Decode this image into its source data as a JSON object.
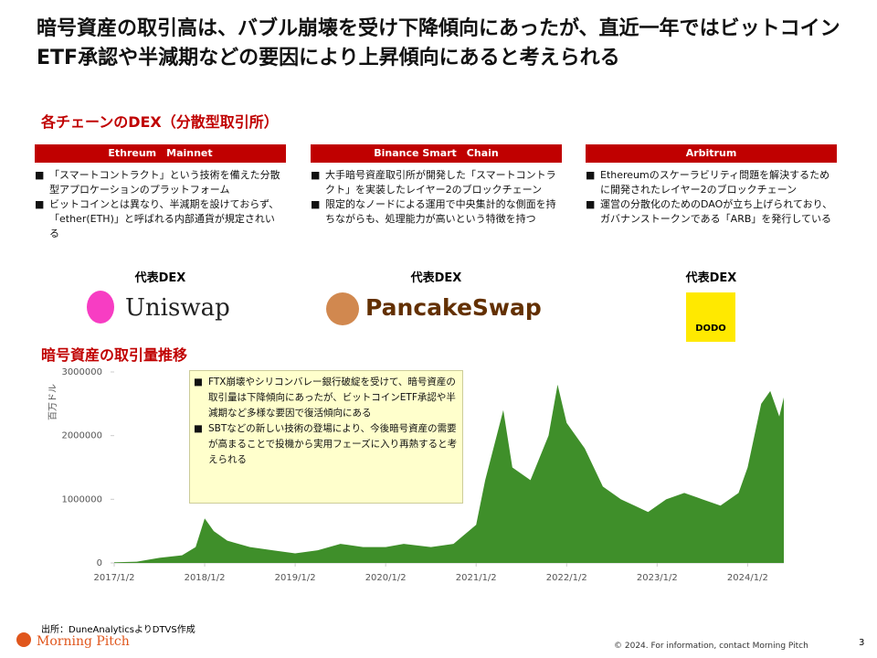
{
  "header": {
    "title": "暗号資産の取引高は、バブル崩壊を受け下降傾向にあったが、直近一年ではビットコインETF承認や半減期などの要因により上昇傾向にあると考えられる",
    "section": "各チェーンのDEX（分散型取引所）"
  },
  "chains": [
    {
      "name": "Ethreum　Mainnet",
      "bullets": [
        "「スマートコントラクト」という技術を備えた分散型アプロケーションのプラットフォーム",
        "ビットコインとは異なり、半減期を設けておらず、「ether(ETH)」と呼ばれる内部通貨が規定されいる"
      ],
      "dex_label": "代表DEX",
      "dex": "Uniswap"
    },
    {
      "name": "Binance Smart　Chain",
      "bullets": [
        "大手暗号資産取引所が開発した「スマートコントラクト」を実装したレイヤー2のブロックチェーン",
        "限定的なノードによる運用で中央集計的な側面を持ちながらも、処理能力が高いという特徴を持つ"
      ],
      "dex_label": "代表DEX",
      "dex": "PancakeSwap"
    },
    {
      "name": "Arbitrum",
      "bullets": [
        "Ethereumのスケーラビリティ問題を解決するために開発されたレイヤー2のブロックチェーン",
        "運営の分散化のためのDAOが立ち上げられており、ガバナンストークンである「ARB」を発行している"
      ],
      "dex_label": "代表DEX",
      "dex": "DODO"
    }
  ],
  "chart_data": {
    "type": "area",
    "title": "暗号資産の取引量推移",
    "y_label": "百万ドル",
    "color": "#3f8f2a",
    "x": [
      2017.0,
      2017.25,
      2017.5,
      2017.75,
      2017.9,
      2018.0,
      2018.1,
      2018.25,
      2018.5,
      2018.75,
      2019.0,
      2019.25,
      2019.5,
      2019.75,
      2020.0,
      2020.2,
      2020.5,
      2020.75,
      2021.0,
      2021.1,
      2021.3,
      2021.4,
      2021.6,
      2021.8,
      2021.9,
      2022.0,
      2022.2,
      2022.4,
      2022.6,
      2022.75,
      2022.9,
      2023.1,
      2023.3,
      2023.5,
      2023.7,
      2023.9,
      2024.0,
      2024.15,
      2024.25,
      2024.35,
      2024.4
    ],
    "values": [
      10000,
      20000,
      80000,
      120000,
      250000,
      700000,
      500000,
      350000,
      250000,
      200000,
      150000,
      200000,
      300000,
      250000,
      250000,
      300000,
      250000,
      300000,
      600000,
      1300000,
      2400000,
      1500000,
      1300000,
      2000000,
      2800000,
      2200000,
      1800000,
      1200000,
      1000000,
      900000,
      800000,
      1000000,
      1100000,
      1000000,
      900000,
      1100000,
      1500000,
      2500000,
      2700000,
      2300000,
      2600000
    ],
    "xlim": [
      2017.0,
      2024.4
    ],
    "xticks": [
      {
        "value": 2017.0,
        "label": "2017/1/2"
      },
      {
        "value": 2018.0,
        "label": "2018/1/2"
      },
      {
        "value": 2019.0,
        "label": "2019/1/2"
      },
      {
        "value": 2020.0,
        "label": "2020/1/2"
      },
      {
        "value": 2021.0,
        "label": "2021/1/2"
      },
      {
        "value": 2022.0,
        "label": "2022/1/2"
      },
      {
        "value": 2023.0,
        "label": "2023/1/2"
      },
      {
        "value": 2024.0,
        "label": "2024/1/2"
      }
    ],
    "ylim": [
      0,
      3000000
    ],
    "yticks": [
      0,
      1000000,
      2000000,
      3000000
    ],
    "annotations": [
      "FTX崩壊やシリコンバレー銀行破綻を受けて、暗号資産の取引量は下降傾向にあったが、ビットコインETF承認や半減期など多様な要因で復活傾向にある",
      "SBTなどの新しい技術の登場により、今後暗号資産の需要が高まることで投機から実用フェーズに入り再熱すると考えられる"
    ]
  },
  "footer": {
    "source": "出所：DuneAnalyticsよりDTVS作成",
    "brand": "Morning Pitch",
    "copyright": "© 2024. For information, contact Morning Pitch",
    "page": "3"
  }
}
